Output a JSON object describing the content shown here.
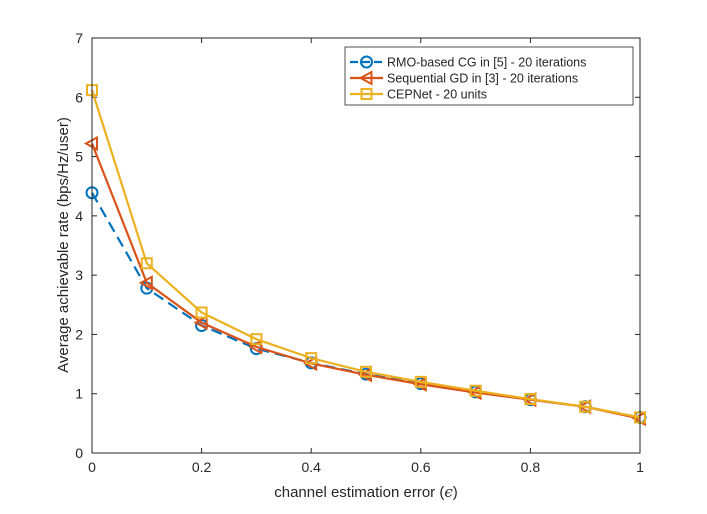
{
  "chart_data": {
    "type": "line",
    "title": "",
    "xlabel": "channel estimation error (",
    "xlabel_symbol": "ϵ",
    "xlabel_close": ")",
    "ylabel": "Average achievable rate (bps/Hz/user)",
    "xlim": [
      0,
      1
    ],
    "ylim": [
      0,
      7
    ],
    "x_ticks": [
      "0",
      "0.2",
      "0.4",
      "0.6",
      "0.8",
      "1"
    ],
    "y_ticks": [
      "0",
      "1",
      "2",
      "3",
      "4",
      "5",
      "6",
      "7"
    ],
    "x": [
      0,
      0.1,
      0.2,
      0.3,
      0.4,
      0.5,
      0.6,
      0.7,
      0.8,
      0.9,
      1.0
    ],
    "legend_position": "top-right",
    "series": [
      {
        "name": "RMO-based CG in [5] - 20 iterations",
        "color": "#0072BD",
        "marker": "circle",
        "line_style": "dashed",
        "values": [
          4.39,
          2.78,
          2.15,
          1.76,
          1.52,
          1.33,
          1.17,
          1.03,
          0.9,
          0.78,
          0.6
        ]
      },
      {
        "name": "Sequential GD in [3] - 20 iterations",
        "color": "#D95319",
        "marker": "triangle-left",
        "line_style": "solid",
        "values": [
          5.22,
          2.87,
          2.2,
          1.79,
          1.51,
          1.32,
          1.16,
          1.02,
          0.9,
          0.78,
          0.58
        ]
      },
      {
        "name": "CEPNet - 20 units",
        "color": "#EDB120",
        "marker": "square",
        "line_style": "solid",
        "values": [
          6.12,
          3.2,
          2.37,
          1.92,
          1.6,
          1.37,
          1.2,
          1.05,
          0.91,
          0.78,
          0.6
        ]
      }
    ]
  }
}
